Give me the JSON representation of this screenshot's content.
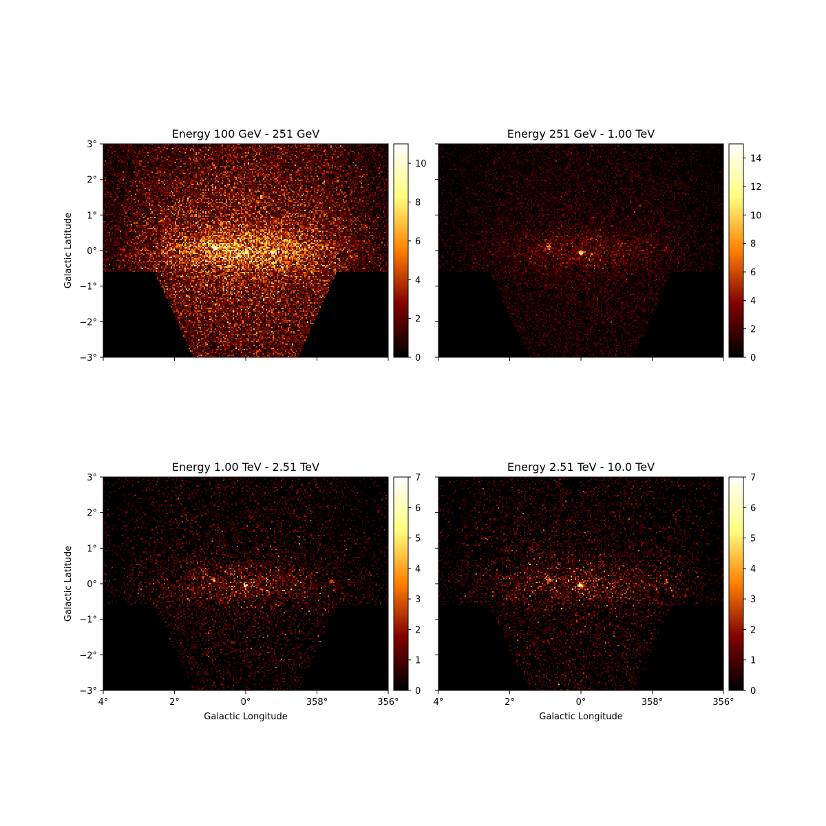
{
  "figure": {
    "shared_y_label": "Galactic Latitude",
    "shared_x_label": "Galactic Longitude"
  },
  "axis": {
    "x_ticks": [
      "4°",
      "2°",
      "0°",
      "358°",
      "356°"
    ],
    "y_ticks": [
      "3°",
      "2°",
      "1°",
      "0°",
      "−1°",
      "−2°",
      "−3°"
    ]
  },
  "colors": {
    "colormap": "afmhot",
    "colormap_stops": [
      "#000000",
      "#7f0000",
      "#ff7f00",
      "#ffff7f",
      "#ffffff"
    ]
  },
  "chart_data": [
    {
      "type": "heatmap",
      "title": "Energy 100 GeV - 251 GeV",
      "xlabel": "",
      "ylabel": "Galactic Latitude",
      "xlim": [
        4,
        -4
      ],
      "ylim": [
        -3,
        3
      ],
      "colorbar": {
        "min": 0,
        "max": 11,
        "ticks": [
          "0",
          "2",
          "4",
          "6",
          "8",
          "10"
        ]
      },
      "sources": [
        {
          "l": 0.0,
          "b": -0.05,
          "peak": 6
        },
        {
          "l": 0.9,
          "b": 0.1,
          "peak": 5
        }
      ],
      "diffuse_level": 3.0,
      "ridge_level": 3.0
    },
    {
      "type": "heatmap",
      "title": "Energy 251 GeV - 1.00 TeV",
      "xlabel": "",
      "ylabel": "",
      "xlim": [
        4,
        -4
      ],
      "ylim": [
        -3,
        3
      ],
      "colorbar": {
        "min": 0,
        "max": 15,
        "ticks": [
          "0",
          "2",
          "4",
          "6",
          "8",
          "10",
          "12",
          "14"
        ]
      },
      "sources": [
        {
          "l": 0.0,
          "b": -0.05,
          "peak": 12
        },
        {
          "l": 0.9,
          "b": 0.1,
          "peak": 7
        },
        {
          "l": -2.4,
          "b": 0.05,
          "peak": 3
        }
      ],
      "diffuse_level": 1.0,
      "ridge_level": 1.5
    },
    {
      "type": "heatmap",
      "title": "Energy 1.00 TeV - 2.51 TeV",
      "xlabel": "Galactic Longitude",
      "ylabel": "Galactic Latitude",
      "xlim": [
        4,
        -4
      ],
      "ylim": [
        -3,
        3
      ],
      "colorbar": {
        "min": 0,
        "max": 7,
        "ticks": [
          "0",
          "1",
          "2",
          "3",
          "4",
          "5",
          "6",
          "7"
        ]
      },
      "sources": [
        {
          "l": 0.0,
          "b": -0.05,
          "peak": 6
        },
        {
          "l": 0.9,
          "b": 0.1,
          "peak": 4
        },
        {
          "l": -2.4,
          "b": 0.05,
          "peak": 2
        }
      ],
      "diffuse_level": 0.35,
      "ridge_level": 0.8
    },
    {
      "type": "heatmap",
      "title": "Energy 2.51 TeV - 10.0 TeV",
      "xlabel": "Galactic Longitude",
      "ylabel": "",
      "xlim": [
        4,
        -4
      ],
      "ylim": [
        -3,
        3
      ],
      "colorbar": {
        "min": 0,
        "max": 7,
        "ticks": [
          "0",
          "1",
          "2",
          "3",
          "4",
          "5",
          "6",
          "7"
        ]
      },
      "sources": [
        {
          "l": 0.0,
          "b": -0.05,
          "peak": 6
        },
        {
          "l": 0.9,
          "b": 0.1,
          "peak": 4
        },
        {
          "l": -2.4,
          "b": 0.05,
          "peak": 2
        }
      ],
      "diffuse_level": 0.35,
      "ridge_level": 0.8
    }
  ]
}
